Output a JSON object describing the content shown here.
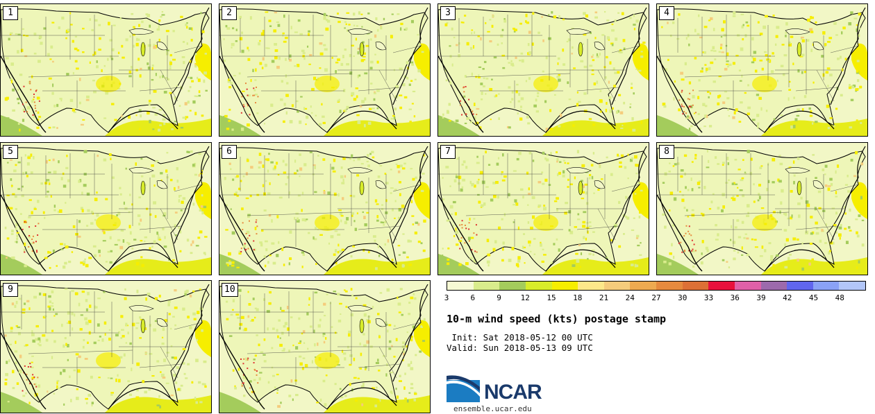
{
  "panels": [
    {
      "member": "1"
    },
    {
      "member": "2"
    },
    {
      "member": "3"
    },
    {
      "member": "4"
    },
    {
      "member": "5"
    },
    {
      "member": "6"
    },
    {
      "member": "7"
    },
    {
      "member": "8"
    },
    {
      "member": "9"
    },
    {
      "member": "10"
    }
  ],
  "colorbar": {
    "ticks": [
      "3",
      "6",
      "9",
      "12",
      "15",
      "18",
      "21",
      "24",
      "27",
      "30",
      "33",
      "36",
      "39",
      "42",
      "45",
      "48"
    ],
    "colors": [
      "#f6f9d4",
      "#d9ec8c",
      "#a4cc5c",
      "#d8ec2a",
      "#f6ee00",
      "#fde88a",
      "#f5cc7c",
      "#eeaa50",
      "#e68a3e",
      "#dd7036",
      "#e8103c",
      "#e060a8",
      "#9c6aac",
      "#6066ee",
      "#8aa2f6",
      "#b2c6f8"
    ]
  },
  "title": "10-m wind speed (kts) postage stamp",
  "init": " Init: Sat 2018-05-12 00 UTC",
  "valid": "Valid: Sun 2018-05-13 09 UTC",
  "logo": {
    "text": "NCAR",
    "website": "ensemble.ucar.edu"
  }
}
